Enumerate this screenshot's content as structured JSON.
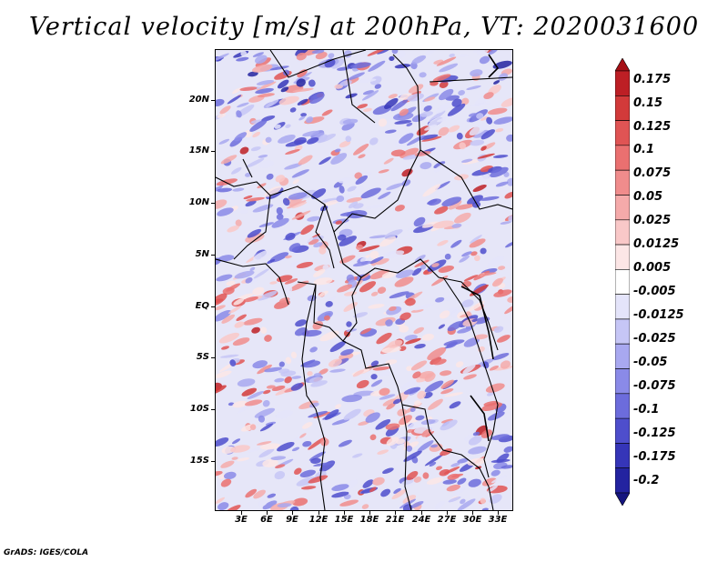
{
  "title": "Vertical velocity [m/s] at 200hPa, VT: 2020031600",
  "map": {
    "lat_labels": [
      "20N",
      "15N",
      "10N",
      "5N",
      "EQ",
      "5S",
      "10S",
      "15S"
    ],
    "lon_labels": [
      "3E",
      "6E",
      "9E",
      "12E",
      "15E",
      "18E",
      "21E",
      "24E",
      "27E",
      "30E",
      "33E"
    ]
  },
  "colorbar": {
    "labels": [
      "0.175",
      "0.15",
      "0.125",
      "0.1",
      "0.075",
      "0.05",
      "0.025",
      "0.0125",
      "0.005",
      "-0.005",
      "-0.0125",
      "-0.025",
      "-0.05",
      "-0.075",
      "-0.1",
      "-0.125",
      "-0.175",
      "-0.2"
    ],
    "colors": [
      "#a50f15",
      "#bd1f25",
      "#d23a3a",
      "#e05454",
      "#ea7070",
      "#f08c8c",
      "#f5aaaa",
      "#f9c8c8",
      "#fce6e6",
      "#ffffff",
      "#e4e4fa",
      "#c6c6f6",
      "#a8a8f0",
      "#8a8ae8",
      "#6c6cdc",
      "#4e4ecc",
      "#3535b8",
      "#2323a0",
      "#15157f"
    ]
  },
  "credit": "GrADS: IGES/COLA"
}
